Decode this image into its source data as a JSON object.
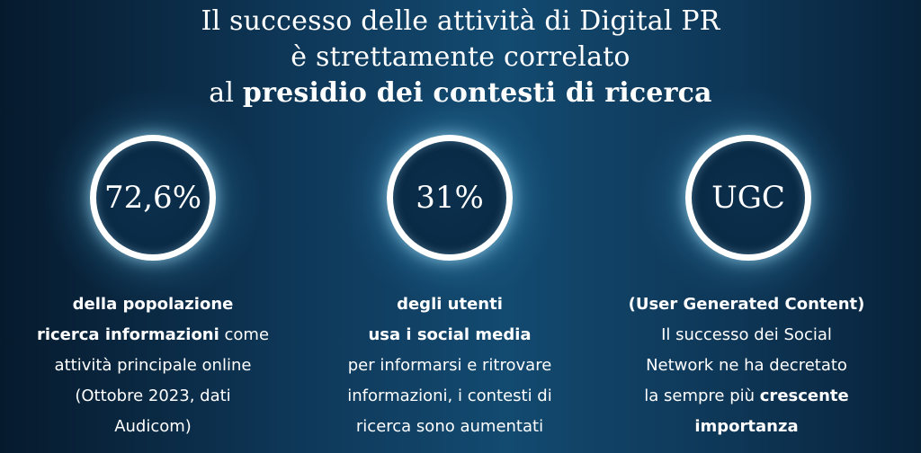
{
  "heading": {
    "line1": "Il successo delle attività di Digital PR",
    "line2": "è strettamente correlato",
    "line3_prefix": "al ",
    "line3_bold": "presidio dei contesti di ricerca"
  },
  "stats": [
    {
      "value": "72,6%",
      "desc": {
        "l1_bold": "della popolazione",
        "l2_bold": "ricerca informazioni",
        "l2_rest": " come",
        "l3": "attività principale online",
        "l4": "(Ottobre 2023, dati",
        "l5": "Audicom)"
      }
    },
    {
      "value": "31%",
      "desc": {
        "l1_bold": "degli utenti",
        "l2_bold": "usa i social media",
        "l3": "per informarsi e ritrovare",
        "l4": "informazioni, i contesti di",
        "l5": "ricerca sono aumentati"
      }
    },
    {
      "value": "UGC",
      "desc": {
        "l1_bold": "(User Generated Content)",
        "l2": "Il successo dei Social",
        "l3": "Network ne ha decretato",
        "l4_prefix": "la sempre più ",
        "l4_bold": "crescente",
        "l5_bold": "importanza"
      }
    }
  ],
  "colors": {
    "background_dark": "#061a2d",
    "background_mid": "#134a70",
    "ring": "#ffffff",
    "glow": "#78c8e6",
    "text": "#ffffff"
  }
}
